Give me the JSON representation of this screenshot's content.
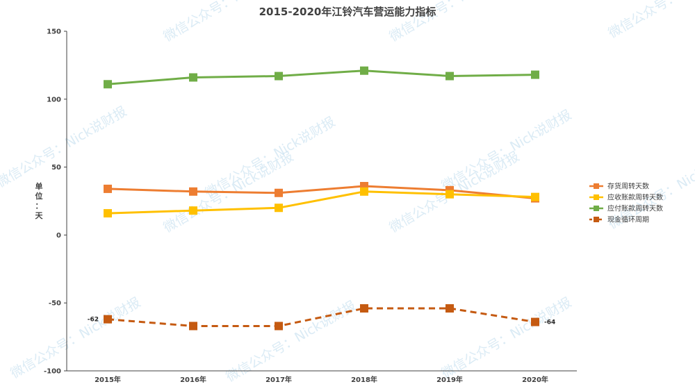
{
  "chart_data": {
    "type": "line",
    "title": "2015-2020年江铃汽车营运能力指标",
    "ylabel": "单位：天",
    "categories": [
      "2015年",
      "2016年",
      "2017年",
      "2018年",
      "2019年",
      "2020年"
    ],
    "ylim": [
      -100,
      150
    ],
    "yticks": [
      "150",
      "100",
      "50",
      "0",
      "-50",
      "-100"
    ],
    "grid": false,
    "legend_position": "right",
    "series": [
      {
        "name": "存货周转天数",
        "color": "#ED7D31",
        "dashed": false,
        "values": [
          34,
          32,
          31,
          36,
          33,
          27
        ]
      },
      {
        "name": "应收账款周转天数",
        "color": "#FFC000",
        "dashed": false,
        "values": [
          16,
          18,
          20,
          32,
          30,
          28
        ]
      },
      {
        "name": "应付账款周转天数",
        "color": "#70AD47",
        "dashed": false,
        "values": [
          111,
          116,
          117,
          121,
          117,
          118
        ]
      },
      {
        "name": "现金循环周期",
        "color": "#C55A11",
        "dashed": true,
        "values": [
          -62,
          -67,
          -67,
          -54,
          -54,
          -64
        ]
      }
    ],
    "data_labels": [
      {
        "series": "现金循环周期",
        "index": 0,
        "text": "-62"
      },
      {
        "series": "现金循环周期",
        "index": 5,
        "text": "-64"
      }
    ],
    "watermark": "微信公众号：Nick说财报"
  }
}
